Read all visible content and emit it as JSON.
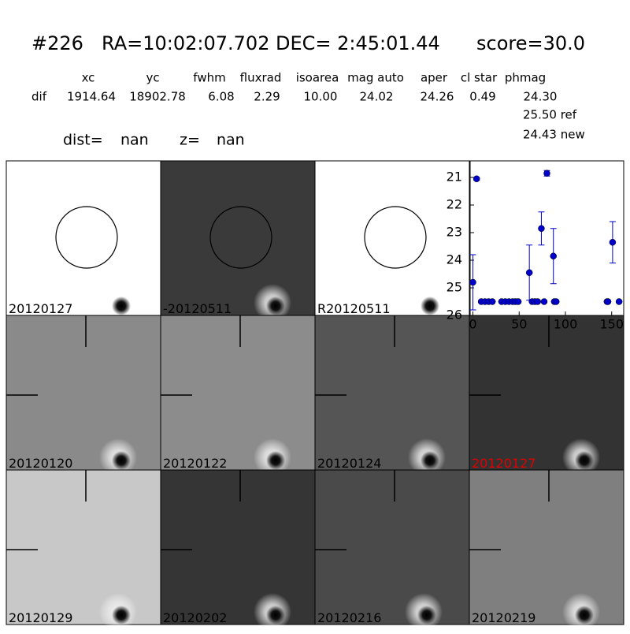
{
  "header": {
    "title": [
      "#226",
      "RA=10:02:07.702",
      "DEC= 2:45:01.44",
      "score=30.0"
    ],
    "columns": [
      "xc",
      "yc",
      "fwhm",
      "fluxrad",
      "isoarea",
      "mag auto",
      "aper",
      "cl star",
      "phmag"
    ],
    "row_label": "dif",
    "row": [
      "1914.64",
      "18902.78",
      "6.08",
      "2.29",
      "10.00",
      "24.02",
      "24.26",
      "0.49",
      "24.30"
    ],
    "extra": [
      "25.50 ref",
      "24.43 new"
    ],
    "dist": [
      "dist=",
      "nan",
      "z=",
      "nan"
    ]
  },
  "stamps": {
    "labels": [
      "20120127",
      "-20120511",
      "R20120511",
      "20120120",
      "20120122",
      "20120124",
      "20120127",
      "20120129",
      "20120202",
      "20120216",
      "20120219"
    ]
  },
  "chart_data": {
    "type": "scatter",
    "color": "#0000cc",
    "x": [
      0,
      4,
      9,
      13,
      17,
      21,
      31,
      35,
      39,
      43,
      46,
      49,
      61,
      64,
      67,
      70,
      74,
      77,
      80,
      87,
      88,
      90,
      145,
      146,
      151,
      158
    ],
    "values": [
      24.8,
      21.05,
      25.5,
      25.5,
      25.5,
      25.5,
      25.5,
      25.5,
      25.5,
      25.5,
      25.5,
      25.5,
      24.45,
      25.5,
      25.5,
      25.5,
      22.85,
      25.5,
      20.85,
      23.85,
      25.5,
      25.5,
      25.5,
      25.5,
      23.35,
      25.5
    ],
    "errors": [
      1.0,
      0.05,
      0,
      0,
      0,
      0,
      0,
      0,
      0,
      0,
      0,
      0,
      1.0,
      0,
      0,
      0,
      0.6,
      0,
      0.1,
      1.0,
      0,
      0,
      0,
      0,
      0.75,
      0
    ],
    "xlim": [
      -3,
      163
    ],
    "ylim": [
      26,
      20.4
    ],
    "xticks": [
      0,
      50,
      100,
      150
    ],
    "yticks": [
      21,
      22,
      23,
      24,
      25,
      26
    ]
  }
}
